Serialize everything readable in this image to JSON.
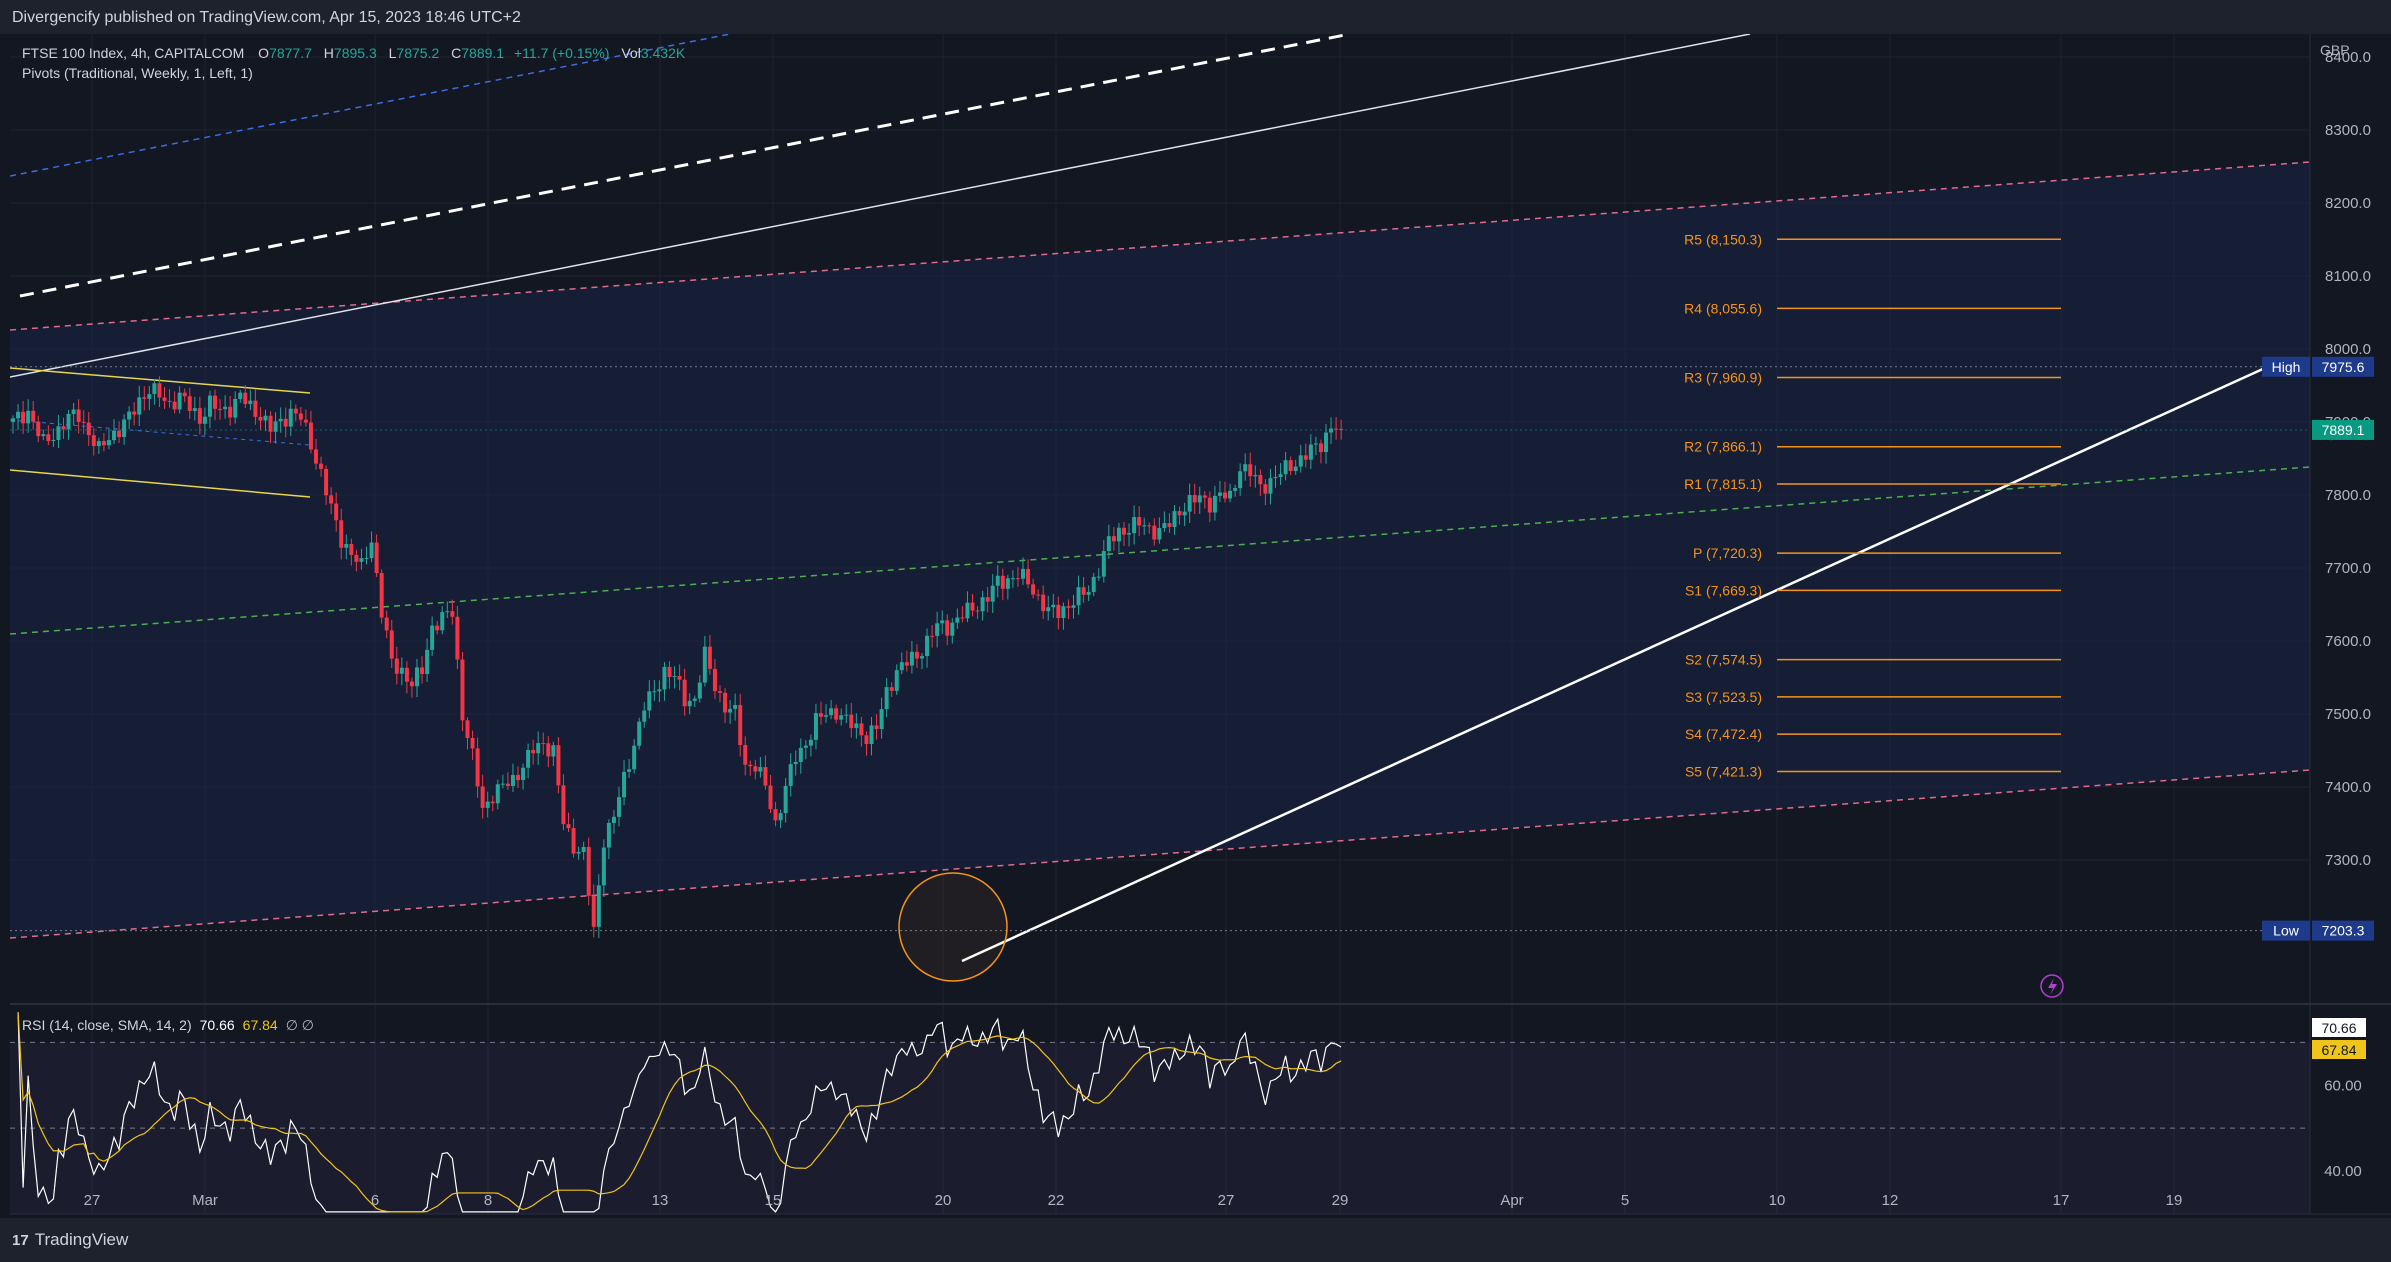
{
  "header": {
    "published": "Divergencify published on TradingView.com, Apr 15, 2023 18:46 UTC+2"
  },
  "legend": {
    "symbol": "FTSE 100 Index, 4h, CAPITALCOM",
    "o_label": "O",
    "o_value": "7877.7",
    "h_label": "H",
    "h_value": "7895.3",
    "l_label": "L",
    "l_value": "7875.2",
    "c_label": "C",
    "c_value": "7889.1",
    "change": "+11.7 (+0.15%)",
    "vol_label": "Vol",
    "vol_value": "3.432K",
    "pivots": "Pivots (Traditional, Weekly, 1, Left, 1)"
  },
  "currency": "GBP",
  "footer": {
    "logo_mark": "17",
    "brand": "TradingView"
  },
  "colors": {
    "background": "#131722",
    "up": "#26a69a",
    "down": "#f23645",
    "pivot": "#f7931a",
    "channel_dash": "#e06c8a",
    "mid_dash": "#4caf50",
    "rsi_line": "#ffffff",
    "rsi_ma": "#f0c419",
    "price_tag": "#089981"
  },
  "chart_data": [
    {
      "type": "candlestick",
      "title": "FTSE 100 Index, 4h, CAPITALCOM",
      "ylim": [
        7160,
        8460
      ],
      "y_ticks": [
        "8400.0",
        "8300.0",
        "8200.0",
        "8100.0",
        "8000.0",
        "7900.0",
        "7800.0",
        "7700.0",
        "7600.0",
        "7500.0",
        "7400.0",
        "7300.0"
      ],
      "x_ticks": [
        "27",
        "Mar",
        "6",
        "8",
        "13",
        "15",
        "20",
        "22",
        "27",
        "29",
        "Apr",
        "5",
        "10",
        "12",
        "17",
        "19"
      ],
      "last_price": "7889.1",
      "high": {
        "label": "High",
        "value": "7975.6"
      },
      "low": {
        "label": "Low",
        "value": "7203.3"
      },
      "pivots": [
        {
          "label": "R5 (8,150.3)",
          "value": 8150.3
        },
        {
          "label": "R4 (8,055.6)",
          "value": 8055.6
        },
        {
          "label": "R3 (7,960.9)",
          "value": 7960.9
        },
        {
          "label": "R2 (7,866.1)",
          "value": 7866.1
        },
        {
          "label": "R1 (7,815.1)",
          "value": 7815.1
        },
        {
          "label": "P (7,720.3)",
          "value": 7720.3
        },
        {
          "label": "S1 (7,669.3)",
          "value": 7669.3
        },
        {
          "label": "S2 (7,574.5)",
          "value": 7574.5
        },
        {
          "label": "S3 (7,523.5)",
          "value": 7523.5
        },
        {
          "label": "S4 (7,472.4)",
          "value": 7472.4
        },
        {
          "label": "S5 (7,421.3)",
          "value": 7421.3
        }
      ],
      "close_path": [
        [
          0,
          7900
        ],
        [
          3,
          7915
        ],
        [
          6,
          7870
        ],
        [
          9,
          7890
        ],
        [
          11,
          7905
        ],
        [
          13,
          7910
        ],
        [
          15,
          7885
        ],
        [
          17,
          7860
        ],
        [
          19,
          7880
        ],
        [
          21,
          7890
        ],
        [
          23,
          7905
        ],
        [
          25,
          7930
        ],
        [
          27,
          7945
        ],
        [
          29,
          7935
        ],
        [
          31,
          7925
        ],
        [
          33,
          7935
        ],
        [
          35,
          7920
        ],
        [
          37,
          7905
        ],
        [
          39,
          7925
        ],
        [
          41,
          7915
        ],
        [
          43,
          7920
        ],
        [
          45,
          7935
        ],
        [
          47,
          7920
        ],
        [
          49,
          7910
        ],
        [
          51,
          7890
        ],
        [
          53,
          7900
        ],
        [
          55,
          7915
        ],
        [
          57,
          7905
        ],
        [
          59,
          7870
        ],
        [
          61,
          7830
        ],
        [
          63,
          7780
        ],
        [
          65,
          7740
        ],
        [
          67,
          7720
        ],
        [
          69,
          7700
        ],
        [
          71,
          7740
        ],
        [
          73,
          7640
        ],
        [
          75,
          7570
        ],
        [
          77,
          7560
        ],
        [
          79,
          7540
        ],
        [
          81,
          7560
        ],
        [
          83,
          7620
        ],
        [
          85,
          7630
        ],
        [
          87,
          7640
        ],
        [
          89,
          7500
        ],
        [
          91,
          7440
        ],
        [
          93,
          7370
        ],
        [
          95,
          7390
        ],
        [
          97,
          7400
        ],
        [
          99,
          7410
        ],
        [
          101,
          7430
        ],
        [
          103,
          7450
        ],
        [
          105,
          7460
        ],
        [
          107,
          7450
        ],
        [
          109,
          7350
        ],
        [
          111,
          7320
        ],
        [
          113,
          7310
        ],
        [
          115,
          7200
        ],
        [
          117,
          7330
        ],
        [
          119,
          7360
        ],
        [
          121,
          7410
        ],
        [
          123,
          7460
        ],
        [
          125,
          7510
        ],
        [
          127,
          7530
        ],
        [
          129,
          7560
        ],
        [
          131,
          7550
        ],
        [
          133,
          7520
        ],
        [
          135,
          7520
        ],
        [
          137,
          7580
        ],
        [
          139,
          7540
        ],
        [
          141,
          7510
        ],
        [
          143,
          7500
        ],
        [
          145,
          7430
        ],
        [
          147,
          7430
        ],
        [
          149,
          7400
        ],
        [
          151,
          7350
        ],
        [
          153,
          7400
        ],
        [
          155,
          7440
        ],
        [
          157,
          7460
        ],
        [
          159,
          7490
        ],
        [
          161,
          7500
        ],
        [
          163,
          7505
        ],
        [
          165,
          7490
        ],
        [
          167,
          7480
        ],
        [
          169,
          7470
        ],
        [
          171,
          7480
        ],
        [
          173,
          7530
        ],
        [
          175,
          7560
        ],
        [
          177,
          7570
        ],
        [
          179,
          7580
        ],
        [
          181,
          7600
        ],
        [
          183,
          7620
        ],
        [
          185,
          7620
        ],
        [
          187,
          7630
        ],
        [
          189,
          7640
        ],
        [
          191,
          7650
        ],
        [
          193,
          7660
        ],
        [
          195,
          7680
        ],
        [
          197,
          7685
        ],
        [
          199,
          7690
        ],
        [
          201,
          7680
        ],
        [
          203,
          7660
        ],
        [
          205,
          7640
        ],
        [
          207,
          7640
        ],
        [
          209,
          7650
        ],
        [
          211,
          7660
        ],
        [
          213,
          7670
        ],
        [
          215,
          7700
        ],
        [
          217,
          7735
        ],
        [
          219,
          7750
        ],
        [
          221,
          7755
        ],
        [
          223,
          7760
        ],
        [
          225,
          7755
        ],
        [
          227,
          7750
        ],
        [
          229,
          7760
        ],
        [
          231,
          7780
        ],
        [
          233,
          7790
        ],
        [
          235,
          7795
        ],
        [
          237,
          7790
        ],
        [
          239,
          7800
        ],
        [
          241,
          7795
        ],
        [
          243,
          7840
        ],
        [
          245,
          7830
        ],
        [
          247,
          7810
        ],
        [
          249,
          7820
        ],
        [
          251,
          7830
        ],
        [
          253,
          7840
        ],
        [
          255,
          7850
        ],
        [
          257,
          7860
        ],
        [
          259,
          7870
        ],
        [
          261,
          7895
        ],
        [
          263,
          7889
        ]
      ],
      "rsi": {
        "label": "RSI (14, close, SMA, 14, 2)",
        "value": "70.66",
        "ma_value": "67.84",
        "extra": "∅ ∅",
        "ylim": [
          30,
          78
        ],
        "y_ticks": [
          "60.00",
          "40.00"
        ],
        "bands": [
          70,
          50,
          30
        ]
      }
    }
  ]
}
